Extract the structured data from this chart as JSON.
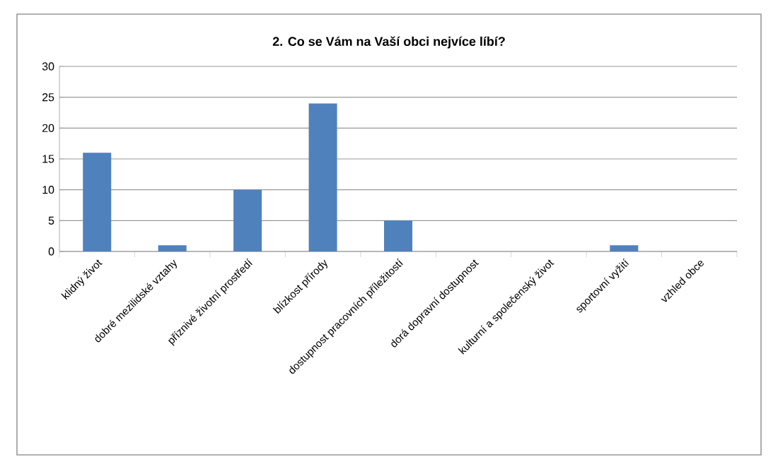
{
  "chart_data": {
    "type": "bar",
    "title": "2. Co  se Vám na Vaší obci nejvíce líbí?",
    "categories": [
      "klidný život",
      "dobré mezilidské vztahy",
      "příznivé životní prostředí",
      "blízkost přírody",
      "dostupnost pracovních příležitostí",
      "dorá dopravní dostupnost",
      "kulturní a společenský život",
      "sportovní vyžití",
      "vzhled obce"
    ],
    "values": [
      16,
      1,
      10,
      24,
      5,
      0,
      0,
      1,
      0
    ],
    "color": "#4f81bd",
    "ylim": [
      0,
      30
    ],
    "yticks": [
      0,
      5,
      10,
      15,
      20,
      25,
      30
    ],
    "grid": "y"
  }
}
